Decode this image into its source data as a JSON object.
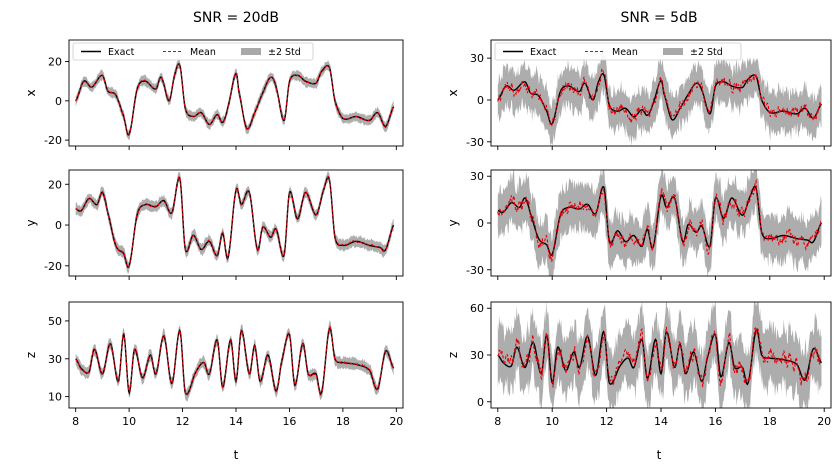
{
  "figure": {
    "x_label": "t",
    "legend": {
      "exact": "Exact",
      "mean": "Mean",
      "std": "±2 Std"
    },
    "colors": {
      "exact": "#000000",
      "mean": "#e8000b",
      "band": "#a9a9a9"
    }
  },
  "chart_data": [
    {
      "type": "line",
      "column_title": "SNR = 20dB",
      "variable": "x",
      "ylabel": "x",
      "xlim": [
        7.75,
        20.25
      ],
      "ylim": [
        -23,
        31
      ],
      "yticks": [
        -20,
        0,
        20
      ],
      "xticks": [
        8,
        10,
        12,
        14,
        16,
        18,
        20
      ],
      "legend": "top-left",
      "t": [
        8,
        8.3,
        8.6,
        9.0,
        9.2,
        9.5,
        9.8,
        10.0,
        10.3,
        10.6,
        11.0,
        11.2,
        11.5,
        11.7,
        11.9,
        12.1,
        12.4,
        12.7,
        13.0,
        13.3,
        13.5,
        13.7,
        14.0,
        14.1,
        14.4,
        14.7,
        15.0,
        15.3,
        15.5,
        15.8,
        16.0,
        16.3,
        16.6,
        17.0,
        17.2,
        17.5,
        17.7,
        18.0,
        18.5,
        19.0,
        19.3,
        19.6,
        19.9
      ],
      "exact": [
        0,
        10,
        7,
        13,
        5,
        3,
        -8,
        -17,
        6,
        10,
        6,
        12,
        0,
        13,
        18,
        -4,
        -8,
        -6,
        -12,
        -7,
        -11,
        -3,
        14,
        5,
        -14,
        -6,
        4,
        12,
        7,
        -10,
        10,
        13,
        10,
        9,
        15,
        17,
        0,
        -9,
        -8,
        -10,
        -6,
        -13,
        -3
      ],
      "mean_noise": 0.5,
      "std": 1.2
    },
    {
      "type": "line",
      "column_title": "",
      "variable": "y",
      "ylabel": "y",
      "xlim": [
        7.75,
        20.25
      ],
      "ylim": [
        -25,
        27
      ],
      "yticks": [
        -20,
        0,
        20
      ],
      "xticks": [
        8,
        10,
        12,
        14,
        16,
        18,
        20
      ],
      "legend": "",
      "t": [
        8,
        8.2,
        8.5,
        8.8,
        9.0,
        9.2,
        9.5,
        9.8,
        10.0,
        10.3,
        10.6,
        11.0,
        11.3,
        11.6,
        11.9,
        12.1,
        12.4,
        12.7,
        13.0,
        13.3,
        13.5,
        13.7,
        14.0,
        14.2,
        14.5,
        14.8,
        15.0,
        15.3,
        15.5,
        15.8,
        16.0,
        16.3,
        16.6,
        17.0,
        17.3,
        17.5,
        17.7,
        18.0,
        18.5,
        19.0,
        19.4,
        19.6,
        19.9
      ],
      "exact": [
        8,
        7,
        13,
        10,
        16,
        6,
        -10,
        -14,
        -20,
        5,
        10,
        9,
        12,
        6,
        23,
        -12,
        -5,
        -12,
        -8,
        -15,
        -4,
        -16,
        17,
        10,
        16,
        -12,
        -1,
        -6,
        -2,
        -15,
        16,
        3,
        16,
        5,
        18,
        22,
        -6,
        -10,
        -8,
        -10,
        -11,
        -12,
        0
      ],
      "mean_noise": 0.6,
      "std": 1.3
    },
    {
      "type": "line",
      "column_title": "",
      "variable": "z",
      "ylabel": "z",
      "xlim": [
        7.75,
        20.25
      ],
      "ylim": [
        4,
        60
      ],
      "yticks": [
        10,
        30,
        50
      ],
      "xticks": [
        8,
        10,
        12,
        14,
        16,
        18,
        20
      ],
      "legend": "",
      "t": [
        8,
        8.2,
        8.5,
        8.7,
        9.0,
        9.3,
        9.6,
        9.8,
        10.0,
        10.2,
        10.5,
        10.8,
        11.0,
        11.3,
        11.6,
        11.9,
        12.1,
        12.5,
        12.8,
        13.0,
        13.3,
        13.5,
        13.8,
        14.0,
        14.2,
        14.5,
        14.7,
        14.9,
        15.2,
        15.5,
        15.7,
        16.0,
        16.2,
        16.5,
        16.7,
        17.0,
        17.2,
        17.5,
        17.7,
        18.0,
        18.5,
        19.0,
        19.3,
        19.6,
        19.9
      ],
      "exact": [
        30,
        25,
        23,
        35,
        22,
        38,
        18,
        43,
        12,
        35,
        20,
        32,
        22,
        42,
        17,
        45,
        12,
        23,
        28,
        22,
        40,
        15,
        40,
        18,
        45,
        22,
        37,
        18,
        32,
        13,
        28,
        43,
        16,
        38,
        22,
        22,
        12,
        46,
        30,
        28,
        27,
        24,
        14,
        34,
        25
      ],
      "mean_noise": 0.8,
      "std": 1.5
    },
    {
      "type": "line",
      "column_title": "SNR = 5dB",
      "variable": "x",
      "ylabel": "x",
      "xlim": [
        7.75,
        20.25
      ],
      "ylim": [
        -33,
        43
      ],
      "yticks": [
        -30,
        0,
        30
      ],
      "xticks": [
        8,
        10,
        12,
        14,
        16,
        18,
        20
      ],
      "legend": "top-left",
      "t": [
        8,
        8.3,
        8.6,
        9.0,
        9.2,
        9.5,
        9.8,
        10.0,
        10.3,
        10.6,
        11.0,
        11.2,
        11.5,
        11.7,
        11.9,
        12.1,
        12.4,
        12.7,
        13.0,
        13.3,
        13.5,
        13.7,
        14.0,
        14.1,
        14.4,
        14.7,
        15.0,
        15.3,
        15.5,
        15.8,
        16.0,
        16.3,
        16.6,
        17.0,
        17.2,
        17.5,
        17.7,
        18.0,
        18.5,
        19.0,
        19.3,
        19.6,
        19.9
      ],
      "exact": [
        0,
        10,
        7,
        13,
        5,
        3,
        -8,
        -17,
        6,
        10,
        6,
        12,
        0,
        13,
        18,
        -4,
        -8,
        -6,
        -12,
        -7,
        -11,
        -3,
        14,
        5,
        -14,
        -6,
        4,
        12,
        7,
        -10,
        10,
        13,
        10,
        9,
        15,
        17,
        0,
        -9,
        -8,
        -10,
        -6,
        -13,
        -3
      ],
      "mean_noise": 5,
      "std": 7
    },
    {
      "type": "line",
      "column_title": "",
      "variable": "y",
      "ylabel": "y",
      "xlim": [
        7.75,
        20.25
      ],
      "ylim": [
        -34,
        34
      ],
      "yticks": [
        -30,
        0,
        30
      ],
      "xticks": [
        8,
        10,
        12,
        14,
        16,
        18,
        20
      ],
      "legend": "",
      "t": [
        8,
        8.2,
        8.5,
        8.8,
        9.0,
        9.2,
        9.5,
        9.8,
        10.0,
        10.3,
        10.6,
        11.0,
        11.3,
        11.6,
        11.9,
        12.1,
        12.4,
        12.7,
        13.0,
        13.3,
        13.5,
        13.7,
        14.0,
        14.2,
        14.5,
        14.8,
        15.0,
        15.3,
        15.5,
        15.8,
        16.0,
        16.3,
        16.6,
        17.0,
        17.3,
        17.5,
        17.7,
        18.0,
        18.5,
        19.0,
        19.4,
        19.6,
        19.9
      ],
      "exact": [
        8,
        7,
        13,
        10,
        16,
        6,
        -10,
        -14,
        -20,
        5,
        10,
        9,
        12,
        6,
        23,
        -12,
        -5,
        -12,
        -8,
        -15,
        -4,
        -16,
        17,
        10,
        16,
        -12,
        -1,
        -6,
        -2,
        -15,
        16,
        3,
        16,
        5,
        18,
        22,
        -6,
        -10,
        -8,
        -10,
        -11,
        -12,
        0
      ],
      "mean_noise": 5,
      "std": 7
    },
    {
      "type": "line",
      "column_title": "",
      "variable": "z",
      "ylabel": "z",
      "xlim": [
        7.75,
        20.25
      ],
      "ylim": [
        -4,
        64
      ],
      "yticks": [
        0,
        30,
        60
      ],
      "xticks": [
        8,
        10,
        12,
        14,
        16,
        18,
        20
      ],
      "legend": "",
      "t": [
        8,
        8.2,
        8.5,
        8.7,
        9.0,
        9.3,
        9.6,
        9.8,
        10.0,
        10.2,
        10.5,
        10.8,
        11.0,
        11.3,
        11.6,
        11.9,
        12.1,
        12.5,
        12.8,
        13.0,
        13.3,
        13.5,
        13.8,
        14.0,
        14.2,
        14.5,
        14.7,
        14.9,
        15.2,
        15.5,
        15.7,
        16.0,
        16.2,
        16.5,
        16.7,
        17.0,
        17.2,
        17.5,
        17.7,
        18.0,
        18.5,
        19.0,
        19.3,
        19.6,
        19.9
      ],
      "exact": [
        30,
        25,
        23,
        35,
        22,
        38,
        18,
        43,
        12,
        35,
        20,
        32,
        22,
        42,
        17,
        45,
        12,
        23,
        28,
        22,
        40,
        15,
        40,
        18,
        45,
        22,
        37,
        18,
        32,
        13,
        28,
        43,
        16,
        38,
        22,
        22,
        12,
        46,
        30,
        28,
        27,
        24,
        14,
        34,
        25
      ],
      "mean_noise": 6,
      "std": 9
    }
  ]
}
